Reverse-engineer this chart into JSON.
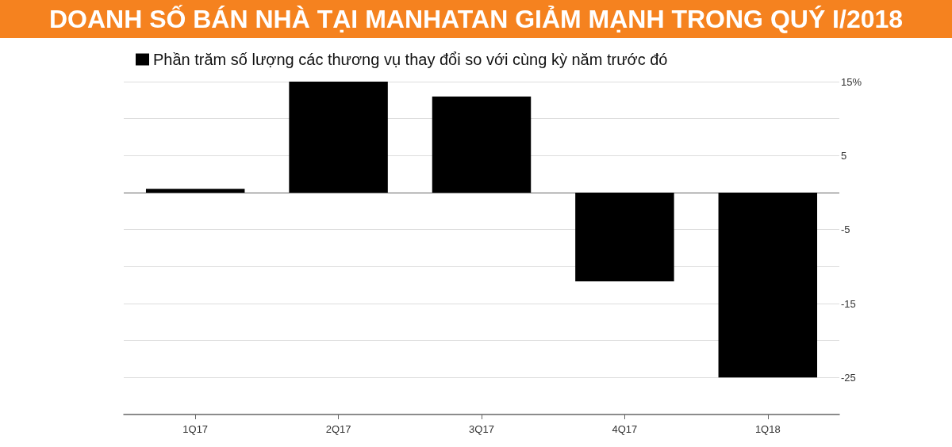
{
  "chart_data": {
    "type": "bar",
    "title": "DOANH SỐ BÁN NHÀ TẠI MANHATAN GIẢM MẠNH TRONG QUÝ I/2018",
    "categories": [
      "1Q17",
      "2Q17",
      "3Q17",
      "4Q17",
      "1Q18"
    ],
    "series": [
      {
        "name": "Phần trăm số lượng các thương vụ thay đổi so với cùng kỳ năm trước đó",
        "color": "#000000",
        "values": [
          0.5,
          15,
          13,
          -12,
          -25
        ]
      }
    ],
    "ylim": [
      -30,
      15
    ],
    "yticks": [
      -25,
      {
        "value": -20,
        "label": null
      },
      -15,
      {
        "value": -10,
        "label": null
      },
      -5,
      {
        "value": 0,
        "label": null
      },
      5,
      {
        "value": 10,
        "label": null
      },
      {
        "value": 15,
        "label": "15%"
      }
    ],
    "grid": "y",
    "legend": "top left"
  }
}
